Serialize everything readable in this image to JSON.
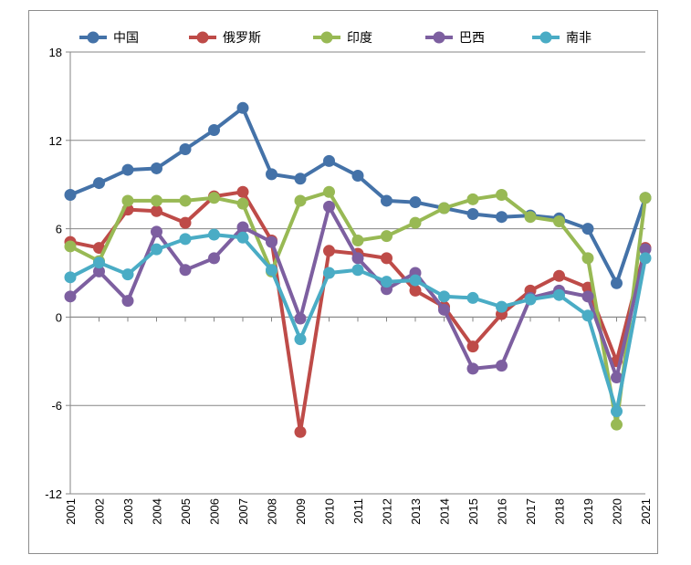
{
  "chart_data": {
    "type": "line",
    "title": "",
    "xlabel": "",
    "ylabel": "",
    "x": [
      "2001",
      "2002",
      "2003",
      "2004",
      "2005",
      "2006",
      "2007",
      "2008",
      "2009",
      "2010",
      "2011",
      "2012",
      "2013",
      "2014",
      "2015",
      "2016",
      "2017",
      "2018",
      "2019",
      "2020",
      "2021"
    ],
    "ylim": [
      -12,
      18
    ],
    "yticks": [
      -12,
      -6,
      0,
      6,
      12,
      18
    ],
    "grid": true,
    "legend_position": "top",
    "series": [
      {
        "name": "中国",
        "color": "#4472a8",
        "values": [
          8.3,
          9.1,
          10.0,
          10.1,
          11.4,
          12.7,
          14.2,
          9.7,
          9.4,
          10.6,
          9.6,
          7.9,
          7.8,
          7.4,
          7.0,
          6.8,
          6.9,
          6.7,
          6.0,
          2.3,
          8.1
        ]
      },
      {
        "name": "俄罗斯",
        "color": "#be4b48",
        "values": [
          5.1,
          4.7,
          7.3,
          7.2,
          6.4,
          8.2,
          8.5,
          5.2,
          -7.8,
          4.5,
          4.3,
          4.0,
          1.8,
          0.7,
          -2.0,
          0.2,
          1.8,
          2.8,
          2.0,
          -3.0,
          4.7
        ]
      },
      {
        "name": "印度",
        "color": "#98b954",
        "values": [
          4.8,
          3.8,
          7.9,
          7.9,
          7.9,
          8.1,
          7.7,
          3.1,
          7.9,
          8.5,
          5.2,
          5.5,
          6.4,
          7.4,
          8.0,
          8.3,
          6.8,
          6.5,
          4.0,
          -7.3,
          8.1
        ]
      },
      {
        "name": "巴西",
        "color": "#7d5fa0",
        "values": [
          1.4,
          3.1,
          1.1,
          5.8,
          3.2,
          4.0,
          6.1,
          5.1,
          -0.1,
          7.5,
          4.0,
          1.9,
          3.0,
          0.5,
          -3.5,
          -3.3,
          1.3,
          1.8,
          1.4,
          -4.1,
          4.6
        ]
      },
      {
        "name": "南非",
        "color": "#4aacc5",
        "values": [
          2.7,
          3.7,
          2.9,
          4.6,
          5.3,
          5.6,
          5.4,
          3.2,
          -1.5,
          3.0,
          3.2,
          2.4,
          2.5,
          1.4,
          1.3,
          0.7,
          1.2,
          1.5,
          0.1,
          -6.4,
          4.0
        ]
      }
    ]
  }
}
